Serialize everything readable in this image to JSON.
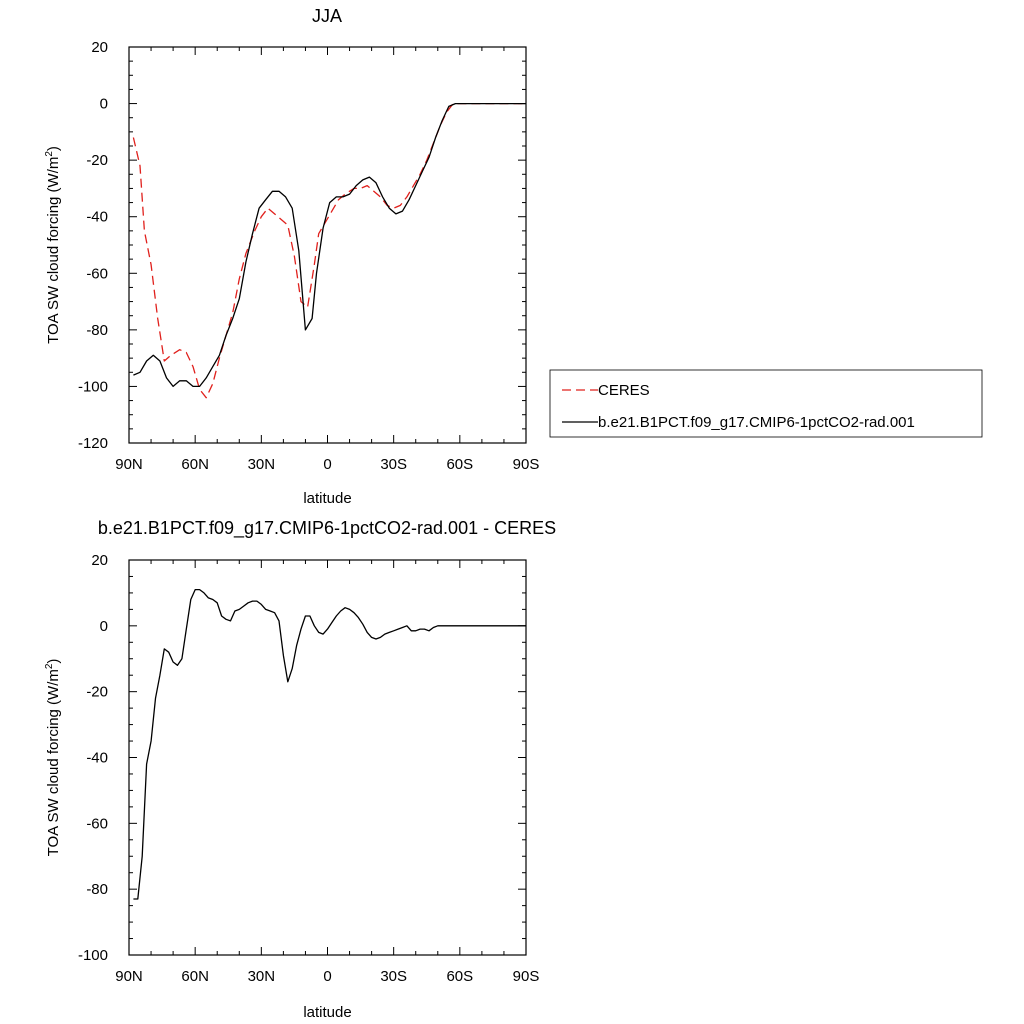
{
  "chart_data": [
    {
      "type": "line",
      "title": "JJA",
      "xlabel": "latitude",
      "ylabel": "TOA SW cloud forcing (W/m²)",
      "ylabel_main": "TOA SW cloud forcing (W/m",
      "ylabel_sup": "2",
      "ylabel_close": ")",
      "xlim": [
        90,
        -90
      ],
      "ylim": [
        -120,
        20
      ],
      "xticks": [
        90,
        60,
        30,
        0,
        -30,
        -60,
        -90
      ],
      "xtick_labels": [
        "90N",
        "60N",
        "30N",
        "0",
        "30S",
        "60S",
        "90S"
      ],
      "yticks": [
        20,
        0,
        -20,
        -40,
        -60,
        -80,
        -100,
        -120
      ],
      "ytick_labels": [
        "20",
        "0",
        "-20",
        "-40",
        "-60",
        "-80",
        "-100",
        "-120"
      ],
      "legend": "right",
      "series": [
        {
          "name": "CERES",
          "color": "#e0201c",
          "dash": true,
          "x": [
            88,
            85,
            83,
            80,
            77,
            74,
            71,
            67,
            64,
            61,
            58,
            55,
            52,
            49,
            46,
            43,
            40,
            37,
            33,
            30,
            27,
            24,
            21,
            18,
            15,
            12,
            9,
            6,
            4,
            1,
            -2,
            -5,
            -8,
            -12,
            -15,
            -18,
            -21,
            -24,
            -27,
            -30,
            -33,
            -36,
            -39,
            -42,
            -45,
            -48,
            -51,
            -54,
            -57,
            -60,
            -63,
            -66,
            -69,
            -72,
            -75,
            -78,
            -81,
            -84,
            -87,
            -90
          ],
          "y": [
            -12,
            -22,
            -45,
            -57,
            -76,
            -91,
            -89,
            -87,
            -88,
            -93,
            -101,
            -104,
            -99,
            -90,
            -82,
            -74,
            -62,
            -53,
            -45,
            -40,
            -37,
            -39,
            -41,
            -43,
            -54,
            -70,
            -72,
            -57,
            -46,
            -42,
            -38,
            -34,
            -32,
            -30,
            -30,
            -29,
            -31,
            -33,
            -36,
            -37,
            -36,
            -33,
            -29,
            -25,
            -20,
            -14,
            -8,
            -3,
            0,
            0,
            0,
            0,
            0,
            0,
            0,
            0,
            0,
            0,
            0,
            0
          ]
        },
        {
          "name": "b.e21.B1PCT.f09_g17.CMIP6-1pctCO2-rad.001",
          "color": "#000000",
          "dash": false,
          "x": [
            88,
            85,
            82,
            79,
            76,
            73,
            70,
            67,
            64,
            61,
            58,
            55,
            52,
            49,
            46,
            43,
            40,
            37,
            34,
            31,
            28,
            25,
            22,
            19,
            16,
            13,
            10,
            7,
            5,
            2,
            -1,
            -4,
            -7,
            -10,
            -13,
            -16,
            -19,
            -22,
            -25,
            -28,
            -31,
            -34,
            -37,
            -40,
            -43,
            -46,
            -49,
            -52,
            -55,
            -58,
            -61,
            -64,
            -67,
            -70,
            -73,
            -76,
            -79,
            -82,
            -85,
            -88,
            -90
          ],
          "y": [
            -96,
            -95,
            -91,
            -89,
            -91,
            -97,
            -100,
            -98,
            -98,
            -100,
            -100,
            -97,
            -93,
            -89,
            -82,
            -76,
            -69,
            -56,
            -46,
            -37,
            -34,
            -31,
            -31,
            -33,
            -37,
            -52,
            -80,
            -76,
            -60,
            -44,
            -35,
            -33,
            -33,
            -32,
            -29,
            -27,
            -26,
            -28,
            -33,
            -37,
            -39,
            -38,
            -34,
            -29,
            -24,
            -19,
            -12,
            -6,
            -1,
            0,
            0,
            0,
            0,
            0,
            0,
            0,
            0,
            0,
            0,
            0,
            0
          ]
        }
      ]
    },
    {
      "type": "line",
      "title": "b.e21.B1PCT.f09_g17.CMIP6-1pctCO2-rad.001 - CERES",
      "xlabel": "latitude",
      "ylabel": "TOA SW cloud forcing (W/m²)",
      "ylabel_main": "TOA SW cloud forcing (W/m",
      "ylabel_sup": "2",
      "ylabel_close": ")",
      "xlim": [
        90,
        -90
      ],
      "ylim": [
        -100,
        20
      ],
      "xticks": [
        90,
        60,
        30,
        0,
        -30,
        -60,
        -90
      ],
      "xtick_labels": [
        "90N",
        "60N",
        "30N",
        "0",
        "30S",
        "60S",
        "90S"
      ],
      "yticks": [
        20,
        0,
        -20,
        -40,
        -60,
        -80,
        -100
      ],
      "ytick_labels": [
        "20",
        "0",
        "-20",
        "-40",
        "-60",
        "-80",
        "-100"
      ],
      "series": [
        {
          "color": "#000000",
          "dash": false,
          "x": [
            88,
            86,
            84,
            82,
            80,
            78,
            76,
            74,
            72,
            70,
            68,
            66,
            64,
            62,
            60,
            58,
            56,
            54,
            52,
            50,
            48,
            46,
            44,
            42,
            40,
            38,
            36,
            34,
            32,
            30,
            28,
            26,
            24,
            22,
            20,
            18,
            16,
            14,
            12,
            10,
            8,
            6,
            4,
            2,
            0,
            -2,
            -4,
            -6,
            -8,
            -10,
            -12,
            -14,
            -16,
            -18,
            -20,
            -22,
            -24,
            -26,
            -28,
            -30,
            -32,
            -34,
            -36,
            -38,
            -40,
            -42,
            -44,
            -46,
            -48,
            -50,
            -52,
            -54,
            -56,
            -58,
            -60,
            -62,
            -64,
            -66,
            -68,
            -70,
            -72,
            -74,
            -76,
            -78,
            -80,
            -82,
            -84,
            -86,
            -88,
            -90
          ],
          "y": [
            -83,
            -83,
            -70,
            -42,
            -35,
            -22,
            -15,
            -7,
            -8,
            -11,
            -12,
            -10,
            -1,
            8,
            11,
            11,
            10,
            8.5,
            8,
            7,
            3,
            2,
            1.5,
            4.5,
            5,
            6,
            7,
            7.5,
            7.5,
            6.5,
            5,
            4.5,
            4,
            1.5,
            -9,
            -17,
            -13,
            -6,
            -1,
            3,
            3,
            0,
            -2,
            -2.5,
            -1,
            1,
            3,
            4.5,
            5.5,
            5,
            4,
            2.5,
            0.5,
            -2,
            -3.5,
            -4,
            -3.5,
            -2.5,
            -2,
            -1.5,
            -1,
            -0.5,
            0,
            -1.5,
            -1.5,
            -1,
            -1,
            -1.5,
            -0.5,
            0,
            0,
            0,
            0,
            0,
            0,
            0,
            0,
            0,
            0,
            0,
            0,
            0,
            0,
            0,
            0,
            0,
            0,
            0,
            0,
            0
          ]
        }
      ]
    }
  ]
}
